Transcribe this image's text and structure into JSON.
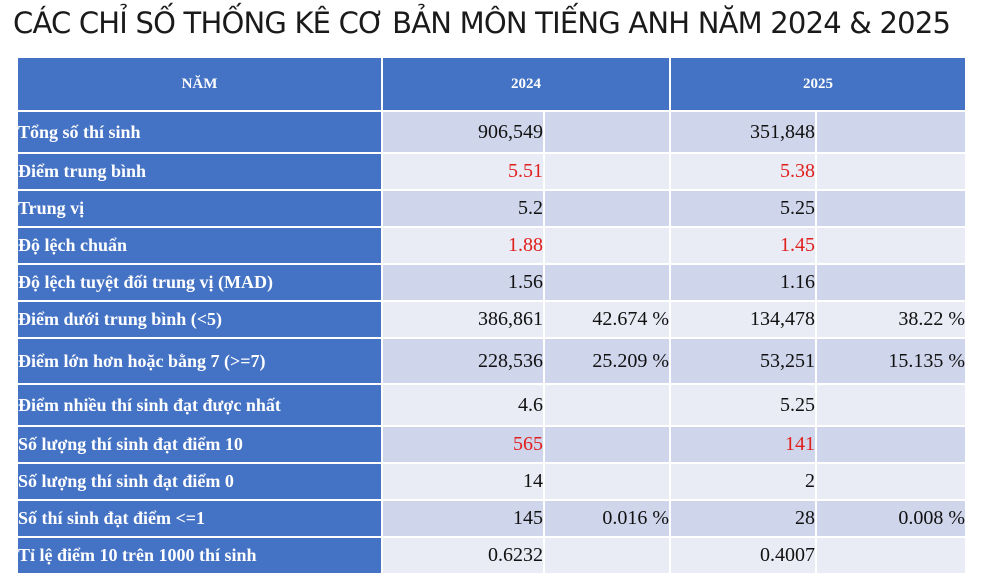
{
  "title": "CÁC CHỈ SỐ THỐNG KÊ CƠ BẢN MÔN TIẾNG ANH NĂM 2024 & 2025",
  "colors": {
    "header_bg": "#4472c4",
    "row_odd_bg": "#cfd5ea",
    "row_even_bg": "#e9ebf5",
    "highlight_text": "#e0201c"
  },
  "table": {
    "headers": [
      "NĂM",
      "2024",
      "2025"
    ],
    "rows": [
      {
        "label": "Tổng số thí sinh",
        "v2024": "906,549",
        "p2024": "",
        "v2025": "351,848",
        "p2025": "",
        "highlight": false
      },
      {
        "label": "Điểm trung bình",
        "v2024": "5.51",
        "p2024": "",
        "v2025": "5.38",
        "p2025": "",
        "highlight": true
      },
      {
        "label": "Trung vị",
        "v2024": "5.2",
        "p2024": "",
        "v2025": "5.25",
        "p2025": "",
        "highlight": false
      },
      {
        "label": "Độ lệch chuẩn",
        "v2024": "1.88",
        "p2024": "",
        "v2025": "1.45",
        "p2025": "",
        "highlight": true
      },
      {
        "label": "Độ lệch tuyệt đối trung vị (MAD)",
        "v2024": "1.56",
        "p2024": "",
        "v2025": "1.16",
        "p2025": "",
        "highlight": false
      },
      {
        "label": "Điểm dưới trung bình (<5)",
        "v2024": "386,861",
        "p2024": "42.674 %",
        "v2025": "134,478",
        "p2025": "38.22 %",
        "highlight": false
      },
      {
        "label": "Điểm lớn hơn hoặc bằng 7 (>=7)",
        "v2024": "228,536",
        "p2024": "25.209 %",
        "v2025": "53,251",
        "p2025": "15.135 %",
        "highlight": false
      },
      {
        "label": "Điểm nhiều thí sinh đạt được nhất",
        "v2024": "4.6",
        "p2024": "",
        "v2025": "5.25",
        "p2025": "",
        "highlight": false
      },
      {
        "label": "Số lượng thí sinh đạt điểm 10",
        "v2024": "565",
        "p2024": "",
        "v2025": "141",
        "p2025": "",
        "highlight": true
      },
      {
        "label": "Số lượng thí sinh đạt điểm 0",
        "v2024": "14",
        "p2024": "",
        "v2025": "2",
        "p2025": "",
        "highlight": false
      },
      {
        "label": "Số thí sinh đạt điểm <=1",
        "v2024": "145",
        "p2024": "0.016 %",
        "v2025": "28",
        "p2025": "0.008 %",
        "highlight": false
      },
      {
        "label": "Tỉ lệ điểm 10 trên 1000 thí sinh",
        "v2024": "0.6232",
        "p2024": "",
        "v2025": "0.4007",
        "p2025": "",
        "highlight": false
      }
    ]
  }
}
